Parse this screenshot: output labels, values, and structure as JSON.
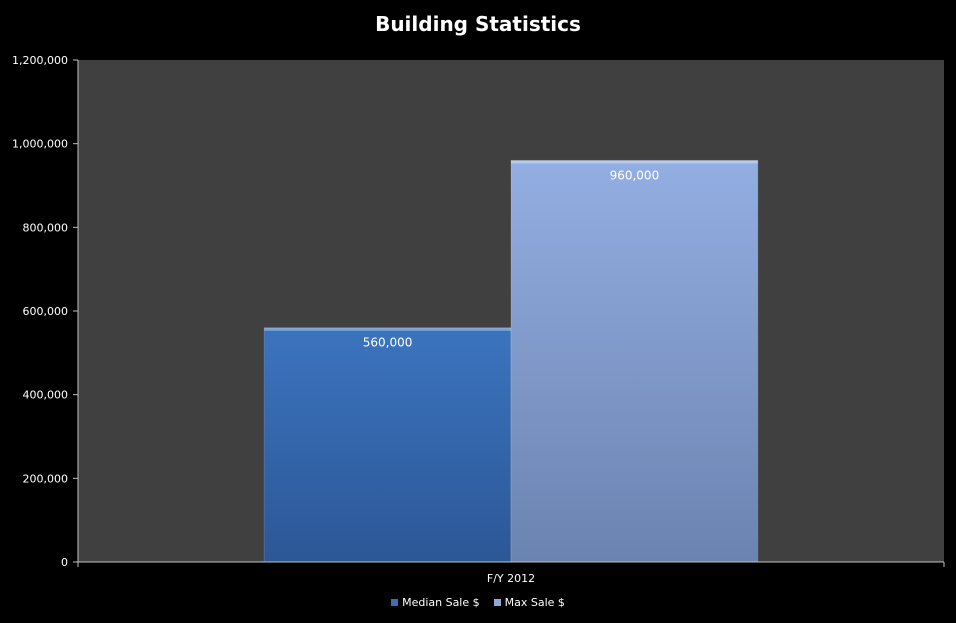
{
  "chart_data": {
    "type": "bar",
    "title": "Building Statistics",
    "categories": [
      "F/Y 2012"
    ],
    "series": [
      {
        "name": "Median Sale $",
        "values": [
          560000
        ],
        "color": "#3a6fb5",
        "label": "560,000"
      },
      {
        "name": "Max Sale $",
        "values": [
          960000
        ],
        "color": "#8ea8d8",
        "label": "960,000"
      }
    ],
    "ylim": [
      0,
      1200000
    ],
    "yticks": [
      {
        "value": 0,
        "label": "0"
      },
      {
        "value": 200000,
        "label": "200,000"
      },
      {
        "value": 400000,
        "label": "400,000"
      },
      {
        "value": 600000,
        "label": "600,000"
      },
      {
        "value": 800000,
        "label": "800,000"
      },
      {
        "value": 1000000,
        "label": "1,000,000"
      },
      {
        "value": 1200000,
        "label": "1,200,000"
      }
    ],
    "grid": false,
    "legend_position": "bottom",
    "plot_background": "#404040"
  }
}
